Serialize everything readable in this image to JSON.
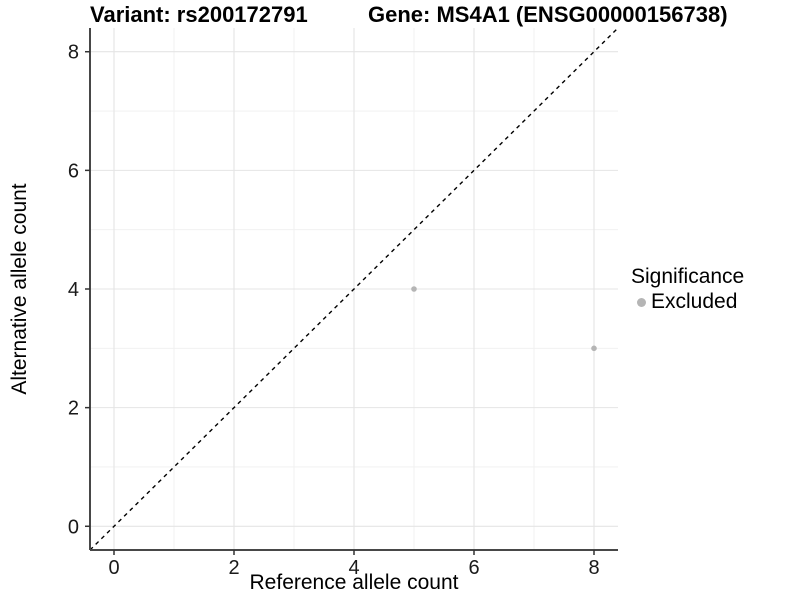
{
  "header": {
    "variant_title": "Variant: rs200172791",
    "gene_title": "Gene: MS4A1 (ENSG00000156738)"
  },
  "chart_data": {
    "type": "scatter",
    "title": "Variant: rs200172791  /  Gene: MS4A1 (ENSG00000156738)",
    "xlabel": "Reference allele count",
    "ylabel": "Alternative allele count",
    "xlim": [
      -0.4,
      8.4
    ],
    "ylim": [
      -0.4,
      8.4
    ],
    "x_ticks": [
      0,
      2,
      4,
      6,
      8
    ],
    "y_ticks": [
      0,
      2,
      4,
      6,
      8
    ],
    "minor_grid": [
      1,
      3,
      5,
      7
    ],
    "grid": true,
    "series": [
      {
        "name": "Excluded",
        "color": "#b5b5b5",
        "points": [
          [
            5,
            4
          ],
          [
            8,
            3
          ]
        ]
      }
    ],
    "reference_line": {
      "type": "identity",
      "style": "dashed",
      "from": [
        -0.4,
        -0.4
      ],
      "to": [
        8.4,
        8.4
      ],
      "color": "#000000"
    },
    "legend": {
      "title": "Significance",
      "position": "right",
      "items": [
        {
          "label": "Excluded",
          "color": "#b5b5b5"
        }
      ]
    }
  },
  "colors": {
    "background": "#ffffff",
    "grid_major": "#e4e4e4",
    "grid_minor": "#efefef",
    "axis_line": "#474747",
    "tick_mark": "#333333",
    "tick_label": "#1a1a1a"
  }
}
